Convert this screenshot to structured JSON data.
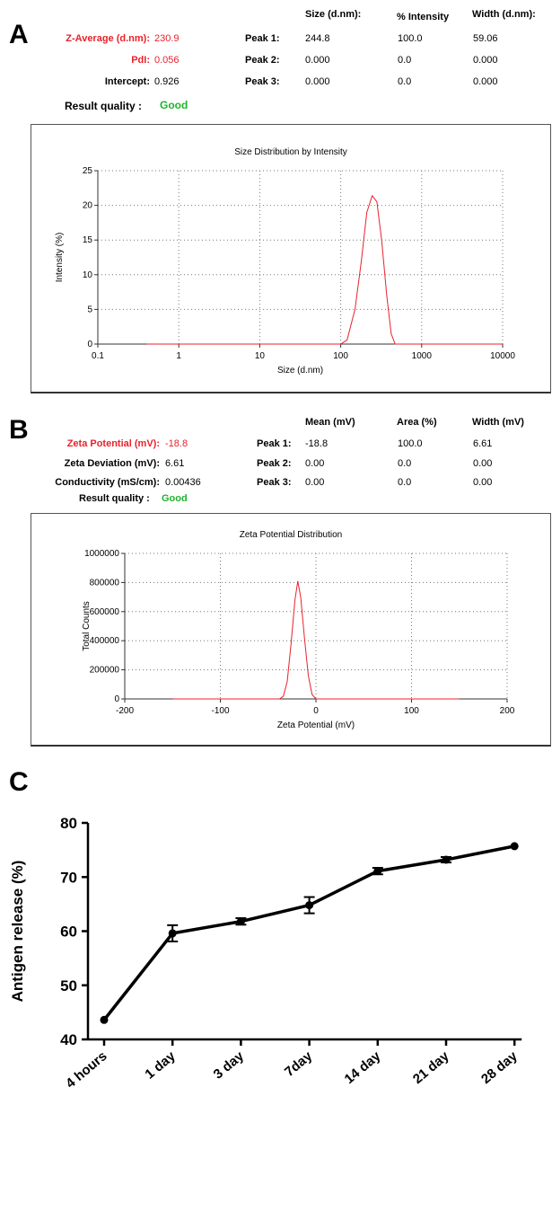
{
  "panels": {
    "a": {
      "letter": "A",
      "headers": [
        "Size (d.nm):",
        "% Intensity",
        "Width (d.nm):"
      ],
      "z_average": {
        "label": "Z-Average (d.nm):",
        "value": "230.9"
      },
      "pdi": {
        "label": "PdI:",
        "value": "0.056"
      },
      "intercept": {
        "label": "Intercept:",
        "value": "0.926"
      },
      "quality": {
        "label": "Result quality :",
        "value": "Good"
      },
      "peaks": [
        {
          "label": "Peak 1:",
          "c1": "244.8",
          "c2": "100.0",
          "c3": "59.06"
        },
        {
          "label": "Peak 2:",
          "c1": "0.000",
          "c2": "0.0",
          "c3": "0.000"
        },
        {
          "label": "Peak 3:",
          "c1": "0.000",
          "c2": "0.0",
          "c3": "0.000"
        }
      ],
      "colors": {
        "param_label": "#e8222b",
        "quality": "#1fb32f",
        "curve": "#e8222b"
      }
    },
    "b": {
      "letter": "B",
      "headers": [
        "Mean (mV)",
        "Area (%)",
        "Width (mV)"
      ],
      "zeta_potential": {
        "label": "Zeta Potential (mV):",
        "value": "-18.8"
      },
      "zeta_deviation": {
        "label": "Zeta Deviation (mV):",
        "value": "6.61"
      },
      "conductivity": {
        "label": "Conductivity (mS/cm):",
        "value": "0.00436"
      },
      "quality": {
        "label": "Result quality :",
        "value": "Good"
      },
      "peaks": [
        {
          "label": "Peak 1:",
          "c1": "-18.8",
          "c2": "100.0",
          "c3": "6.61"
        },
        {
          "label": "Peak 2:",
          "c1": "0.00",
          "c2": "0.0",
          "c3": "0.00"
        },
        {
          "label": "Peak 3:",
          "c1": "0.00",
          "c2": "0.0",
          "c3": "0.00"
        }
      ]
    },
    "c": {
      "letter": "C"
    }
  },
  "chart_data": [
    {
      "type": "line",
      "title": "Size Distribution by Intensity",
      "xlabel": "Size (d.nm)",
      "ylabel": "Intensity (%)",
      "xscale": "log",
      "xlim": [
        0.1,
        10000
      ],
      "ylim": [
        0,
        25
      ],
      "grid": true,
      "x_ticks": [
        "0.1",
        "1",
        "10",
        "100",
        "1000",
        "10000"
      ],
      "y_ticks": [
        "0",
        "5",
        "10",
        "15",
        "20",
        "25"
      ],
      "x": [
        0.4,
        100,
        120,
        150,
        180,
        210,
        245,
        280,
        320,
        370,
        420,
        470,
        10000
      ],
      "y": [
        0,
        0,
        0.6,
        5,
        12,
        19,
        21.4,
        20.5,
        15,
        7,
        1.5,
        0,
        0
      ]
    },
    {
      "type": "line",
      "title": "Zeta Potential Distribution",
      "xlabel": "Zeta Potential (mV)",
      "ylabel": "Total Counts",
      "xlim": [
        -200,
        200
      ],
      "ylim": [
        0,
        1000000
      ],
      "grid": true,
      "x_ticks": [
        "-200",
        "-100",
        "0",
        "100",
        "200"
      ],
      "y_ticks": [
        "0",
        "200000",
        "400000",
        "600000",
        "800000",
        "1000000"
      ],
      "x": [
        -150,
        -38,
        -34,
        -30,
        -26,
        -22,
        -19,
        -16,
        -12,
        -8,
        -4,
        0,
        150
      ],
      "y": [
        0,
        0,
        20000,
        120000,
        380000,
        680000,
        810000,
        700000,
        420000,
        160000,
        30000,
        0,
        0
      ]
    },
    {
      "type": "line",
      "ylabel": "Antigen release (%)",
      "ylim": [
        40,
        80
      ],
      "y_ticks": [
        "40",
        "50",
        "60",
        "70",
        "80"
      ],
      "categories": [
        "4 hours",
        "1 day",
        "3 day",
        "7day",
        "14 day",
        "21 day",
        "28 day"
      ],
      "values": [
        43.6,
        59.6,
        61.8,
        64.8,
        71.1,
        73.2,
        75.7
      ],
      "errors": [
        0.3,
        1.5,
        0.6,
        1.5,
        0.6,
        0.5,
        0.3
      ]
    }
  ]
}
